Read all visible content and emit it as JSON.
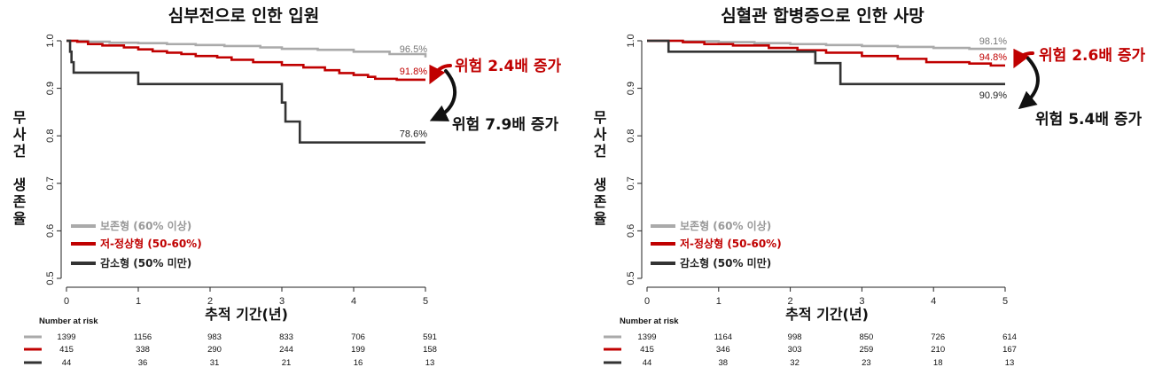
{
  "colors": {
    "preserved": "#aaaaaa",
    "lownormal": "#c00000",
    "reduced": "#333333"
  },
  "chart_data": [
    {
      "type": "line",
      "title": "심부전으로 인한 입원",
      "ylabel": "무사건 생존율",
      "xlabel": "추적 기간(년)",
      "xlim": [
        0,
        5
      ],
      "ylim": [
        0.5,
        1.0
      ],
      "xticks": [
        "0",
        "1",
        "2",
        "3",
        "4",
        "5"
      ],
      "yticks": [
        "0.5",
        "0.6",
        "0.7",
        "0.8",
        "0.9",
        "1.0"
      ],
      "legend_position": "bottom-left",
      "series": [
        {
          "name": "보존형 (60% 이상)",
          "color": "#aaaaaa",
          "end_label": "96.5%",
          "points": [
            [
              0,
              1.0
            ],
            [
              0.3,
              0.998
            ],
            [
              0.6,
              0.996
            ],
            [
              1.0,
              0.995
            ],
            [
              1.4,
              0.993
            ],
            [
              1.8,
              0.991
            ],
            [
              2.2,
              0.989
            ],
            [
              2.7,
              0.986
            ],
            [
              3.0,
              0.983
            ],
            [
              3.5,
              0.981
            ],
            [
              4.0,
              0.977
            ],
            [
              4.5,
              0.972
            ],
            [
              5.0,
              0.965
            ]
          ]
        },
        {
          "name": "저-정상형 (50-60%)",
          "color": "#c00000",
          "end_label": "91.8%",
          "points": [
            [
              0,
              1.0
            ],
            [
              0.15,
              0.998
            ],
            [
              0.3,
              0.993
            ],
            [
              0.5,
              0.99
            ],
            [
              0.8,
              0.986
            ],
            [
              1.0,
              0.982
            ],
            [
              1.2,
              0.978
            ],
            [
              1.4,
              0.975
            ],
            [
              1.6,
              0.972
            ],
            [
              1.8,
              0.968
            ],
            [
              2.1,
              0.965
            ],
            [
              2.3,
              0.96
            ],
            [
              2.6,
              0.955
            ],
            [
              3.0,
              0.949
            ],
            [
              3.3,
              0.944
            ],
            [
              3.6,
              0.938
            ],
            [
              3.8,
              0.932
            ],
            [
              4.0,
              0.928
            ],
            [
              4.2,
              0.924
            ],
            [
              4.3,
              0.92
            ],
            [
              4.6,
              0.918
            ],
            [
              5.0,
              0.918
            ]
          ]
        },
        {
          "name": "감소형 (50% 미만)",
          "color": "#333333",
          "end_label": "78.6%",
          "points": [
            [
              0,
              1.0
            ],
            [
              0.05,
              0.977
            ],
            [
              0.07,
              0.955
            ],
            [
              0.1,
              0.933
            ],
            [
              1.0,
              0.933
            ],
            [
              1.0,
              0.909
            ],
            [
              3.0,
              0.909
            ],
            [
              3.0,
              0.87
            ],
            [
              3.05,
              0.83
            ],
            [
              3.25,
              0.83
            ],
            [
              3.25,
              0.786
            ],
            [
              5.0,
              0.786
            ]
          ]
        }
      ],
      "annotations": [
        {
          "text": "위험 2.4배 증가",
          "color": "#c00000"
        },
        {
          "text": "위험 7.9배 증가",
          "color": "#111111"
        }
      ],
      "risk_table": {
        "header": "Number at risk",
        "rows": [
          [
            "1399",
            "1156",
            "983",
            "833",
            "706",
            "591"
          ],
          [
            "415",
            "338",
            "290",
            "244",
            "199",
            "158"
          ],
          [
            "44",
            "36",
            "31",
            "21",
            "16",
            "13"
          ]
        ]
      }
    },
    {
      "type": "line",
      "title": "심혈관 합병증으로 인한 사망",
      "ylabel": "무사건 생존율",
      "xlabel": "추적 기간(년)",
      "xlim": [
        0,
        5
      ],
      "ylim": [
        0.5,
        1.0
      ],
      "xticks": [
        "0",
        "1",
        "2",
        "3",
        "4",
        "5"
      ],
      "yticks": [
        "0.5",
        "0.6",
        "0.7",
        "0.8",
        "0.9",
        "1.0"
      ],
      "legend_position": "bottom-left",
      "series": [
        {
          "name": "보존형 (60% 이상)",
          "color": "#aaaaaa",
          "end_label": "98.1%",
          "points": [
            [
              0,
              1.0
            ],
            [
              0.5,
              0.999
            ],
            [
              1.0,
              0.997
            ],
            [
              1.5,
              0.995
            ],
            [
              2.0,
              0.993
            ],
            [
              2.5,
              0.991
            ],
            [
              3.0,
              0.989
            ],
            [
              3.5,
              0.987
            ],
            [
              4.0,
              0.985
            ],
            [
              4.5,
              0.983
            ],
            [
              5.0,
              0.981
            ]
          ]
        },
        {
          "name": "저-정상형 (50-60%)",
          "color": "#c00000",
          "end_label": "94.8%",
          "points": [
            [
              0,
              1.0
            ],
            [
              0.5,
              0.997
            ],
            [
              0.8,
              0.993
            ],
            [
              1.2,
              0.99
            ],
            [
              1.7,
              0.985
            ],
            [
              2.1,
              0.98
            ],
            [
              2.5,
              0.975
            ],
            [
              3.0,
              0.968
            ],
            [
              3.5,
              0.962
            ],
            [
              3.9,
              0.955
            ],
            [
              4.5,
              0.952
            ],
            [
              4.8,
              0.948
            ],
            [
              5.0,
              0.948
            ]
          ]
        },
        {
          "name": "감소형 (50% 미만)",
          "color": "#333333",
          "end_label": "90.9%",
          "points": [
            [
              0,
              1.0
            ],
            [
              0.3,
              1.0
            ],
            [
              0.3,
              0.977
            ],
            [
              2.35,
              0.977
            ],
            [
              2.35,
              0.953
            ],
            [
              2.7,
              0.953
            ],
            [
              2.7,
              0.909
            ],
            [
              5.0,
              0.909
            ]
          ]
        }
      ],
      "annotations": [
        {
          "text": "위험 2.6배 증가",
          "color": "#c00000"
        },
        {
          "text": "위험 5.4배 증가",
          "color": "#111111"
        }
      ],
      "risk_table": {
        "header": "Number at risk",
        "rows": [
          [
            "1399",
            "1164",
            "998",
            "850",
            "726",
            "614"
          ],
          [
            "415",
            "346",
            "303",
            "259",
            "210",
            "167"
          ],
          [
            "44",
            "38",
            "32",
            "23",
            "18",
            "13"
          ]
        ]
      }
    }
  ]
}
